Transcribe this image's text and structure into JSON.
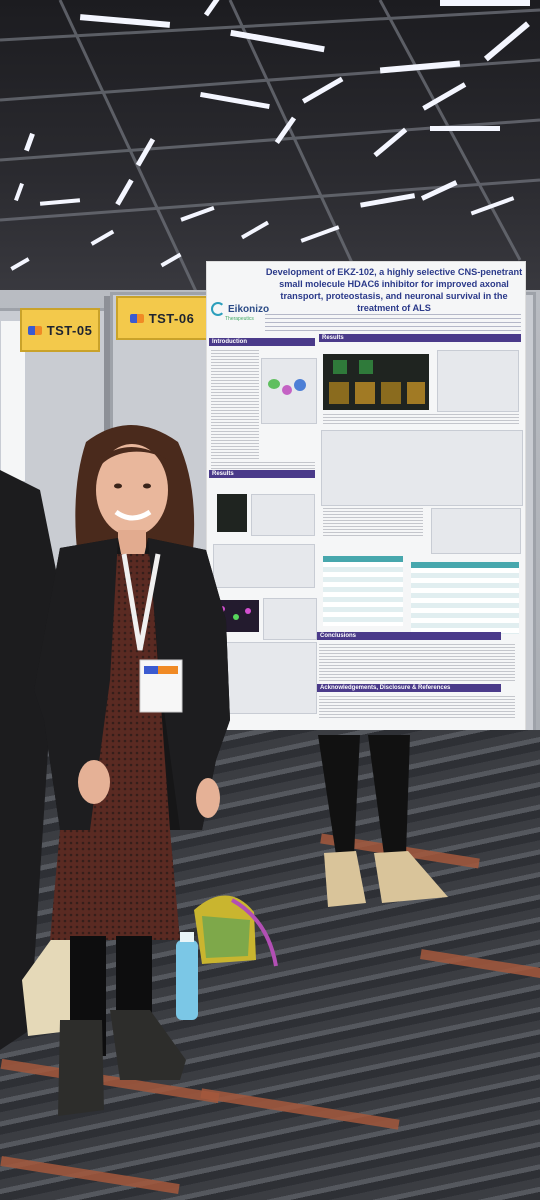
{
  "booth_tags": [
    {
      "label": "TST-05"
    },
    {
      "label": "TST-06"
    }
  ],
  "poster": {
    "brand": "Eikonizo",
    "brand_sub": "Therapeutics",
    "title": "Development of EKZ-102, a highly selective CNS-penetrant small molecule HDAC6 inhibitor for improved axonal transport, proteostasis, and neuronal survival in the treatment of ALS",
    "sections": {
      "introduction": "Introduction",
      "results_left": "Results",
      "results_right": "Results",
      "conclusions": "Conclusions",
      "acknowledgements": "Acknowledgements, Disclosure & References"
    }
  },
  "colors": {
    "poster_accent": "#4a3a8a",
    "tag_yellow": "#f3c94b",
    "table_teal": "#47a7ad"
  }
}
